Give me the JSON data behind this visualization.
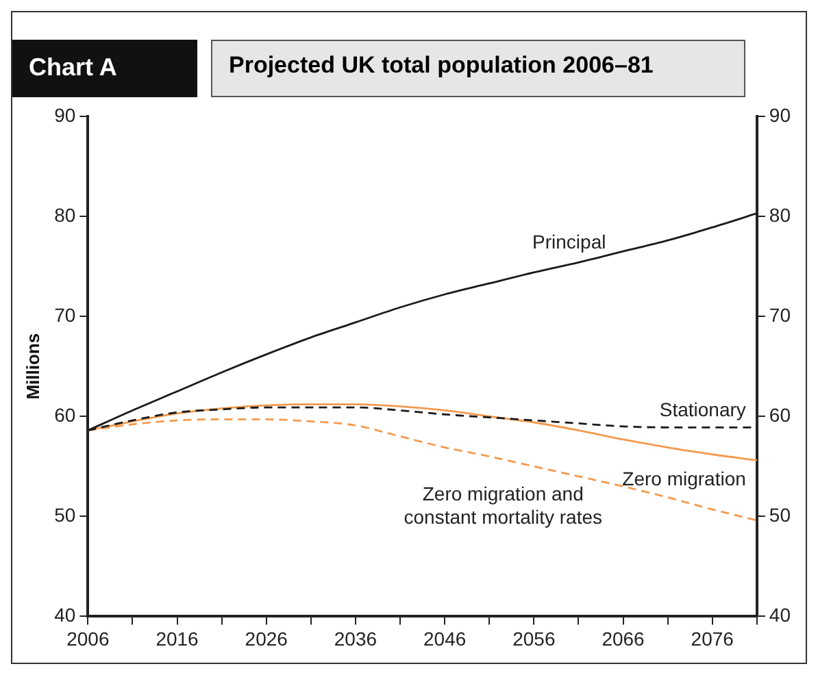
{
  "chart_data": {
    "type": "line",
    "title": "Projected UK total population 2006–81",
    "subtitle": "Chart A",
    "ylabel": "Millions",
    "x": [
      2006,
      2011,
      2016,
      2021,
      2026,
      2031,
      2036,
      2041,
      2046,
      2051,
      2056,
      2061,
      2066,
      2071,
      2076,
      2081
    ],
    "series": [
      {
        "name": "Principal",
        "color": "#1a1a1a",
        "line_style": "solid",
        "values": [
          58.6,
          60.6,
          62.5,
          64.4,
          66.2,
          67.9,
          69.4,
          70.9,
          72.2,
          73.3,
          74.4,
          75.4,
          76.5,
          77.6,
          78.9,
          80.3
        ]
      },
      {
        "name": "Stationary",
        "color": "#1a1a1a",
        "line_style": "dashed",
        "values": [
          58.6,
          59.6,
          60.4,
          60.7,
          60.9,
          60.9,
          60.9,
          60.6,
          60.2,
          59.9,
          59.6,
          59.3,
          59.0,
          58.9,
          58.9,
          58.9
        ]
      },
      {
        "name": "Zero migration",
        "color": "#f39a4e",
        "line_style": "solid",
        "values": [
          58.6,
          59.5,
          60.3,
          60.8,
          61.1,
          61.2,
          61.2,
          61.0,
          60.6,
          60.0,
          59.4,
          58.6,
          57.7,
          56.9,
          56.2,
          55.6
        ]
      },
      {
        "name": "Zero migration and constant mortality rates",
        "color": "#f39a4e",
        "line_style": "dashed",
        "values": [
          58.6,
          59.2,
          59.6,
          59.7,
          59.7,
          59.5,
          59.1,
          58.0,
          56.9,
          56.0,
          55.0,
          54.0,
          53.0,
          51.9,
          50.7,
          49.6
        ]
      }
    ],
    "xlim": [
      2006,
      2081
    ],
    "xticks": [
      2006,
      {
        "value": 2011,
        "label": null
      },
      2016,
      {
        "value": 2021,
        "label": null
      },
      2026,
      {
        "value": 2031,
        "label": null
      },
      2036,
      {
        "value": 2041,
        "label": null
      },
      2046,
      {
        "value": 2051,
        "label": null
      },
      2056,
      {
        "value": 2061,
        "label": null
      },
      2066,
      {
        "value": 2071,
        "label": null
      },
      2076,
      {
        "value": 2081,
        "label": null
      }
    ],
    "ylim": [
      40,
      90
    ],
    "yticks": [
      40,
      50,
      60,
      70,
      80,
      90
    ],
    "y2lim": [
      40,
      90
    ],
    "y2ticks": [
      40,
      50,
      60,
      70,
      80,
      90
    ],
    "grid": false,
    "legend": false,
    "marker": "none"
  }
}
